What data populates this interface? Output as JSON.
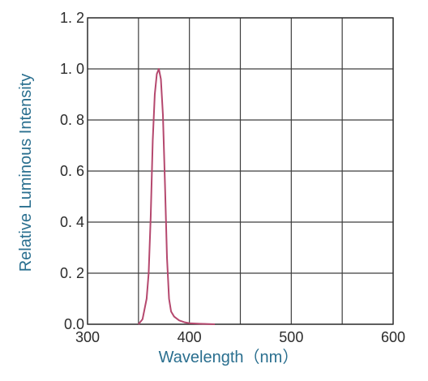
{
  "chart_data": {
    "type": "line",
    "title": "",
    "xlabel": "Wavelength（nm）",
    "ylabel": "Relative Luminous Intensity",
    "xlim": [
      300,
      600
    ],
    "ylim": [
      0,
      1.2
    ],
    "x_ticks": [
      300,
      400,
      500,
      600
    ],
    "x_tick_labels": [
      "300",
      "400",
      "500",
      "600"
    ],
    "y_ticks": [
      0,
      0.2,
      0.4,
      0.6,
      0.8,
      1.0,
      1.2
    ],
    "y_tick_labels": [
      "0.0",
      "0. 2",
      "0. 4",
      "0. 6",
      "0. 8",
      "1. 0",
      "1. 2"
    ],
    "grid": true,
    "series": [
      {
        "color": "#b5486e",
        "x": [
          350,
          354,
          358,
          360,
          362,
          364,
          366,
          368,
          370,
          372,
          374,
          376,
          378,
          380,
          382,
          385,
          390,
          395,
          400,
          410,
          425
        ],
        "y": [
          0.0,
          0.02,
          0.1,
          0.2,
          0.42,
          0.72,
          0.9,
          0.98,
          1.0,
          0.96,
          0.82,
          0.55,
          0.26,
          0.1,
          0.05,
          0.03,
          0.015,
          0.008,
          0.004,
          0.002,
          0.0
        ]
      }
    ]
  }
}
